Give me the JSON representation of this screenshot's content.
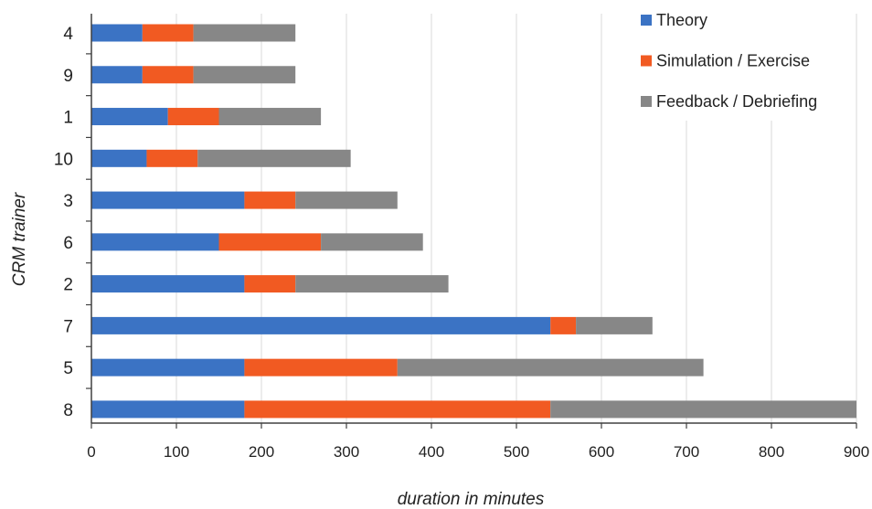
{
  "chart_data": {
    "type": "bar",
    "orientation": "horizontal",
    "stacked": true,
    "title": "",
    "xlabel": "duration in minutes",
    "ylabel": "CRM trainer",
    "xlim": [
      0,
      900
    ],
    "xticks": [
      0,
      100,
      200,
      300,
      400,
      500,
      600,
      700,
      800,
      900
    ],
    "grid": "vertical",
    "legend_position": "top-right",
    "categories": [
      "4",
      "9",
      "1",
      "10",
      "3",
      "6",
      "2",
      "7",
      "5",
      "8"
    ],
    "series": [
      {
        "name": "Theory",
        "color": "#3b73c4",
        "values": [
          60,
          60,
          90,
          65,
          180,
          150,
          180,
          540,
          180,
          180
        ]
      },
      {
        "name": "Simulation / Exercise",
        "color": "#f15a22",
        "values": [
          60,
          60,
          60,
          60,
          60,
          120,
          60,
          30,
          180,
          360
        ]
      },
      {
        "name": "Feedback / Debriefing",
        "color": "#878787",
        "values": [
          120,
          120,
          120,
          180,
          120,
          120,
          180,
          90,
          360,
          360
        ]
      }
    ]
  }
}
